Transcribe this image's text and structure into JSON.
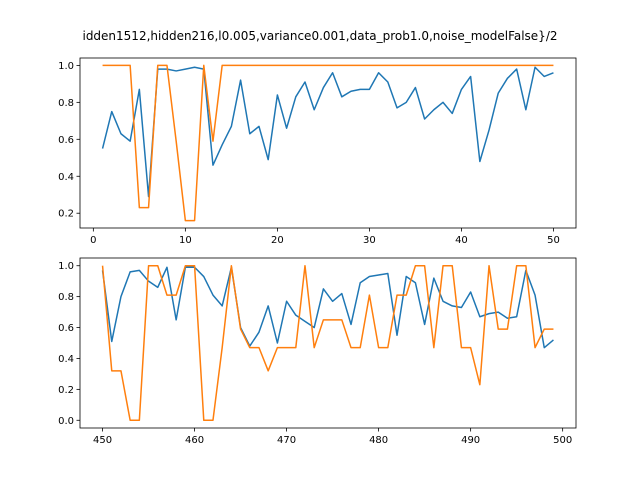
{
  "figure": {
    "title": "idden1512,hidden216,l0.005,variance0.001,data_prob1.0,noise_modelFalse}/2"
  },
  "chart_data": [
    {
      "type": "line",
      "title": "",
      "xlabel": "",
      "ylabel": "",
      "xlim": [
        -1.45,
        52.45
      ],
      "ylim": [
        0.12,
        1.04
      ],
      "xticks": [
        0,
        10,
        20,
        30,
        40,
        50
      ],
      "yticks": [
        0.2,
        0.4,
        0.6,
        0.8,
        1.0
      ],
      "ytick_labels": [
        "0.2",
        "0.4",
        "0.6",
        "0.8",
        "1.0"
      ],
      "grid": false,
      "legend": "none",
      "x": [
        1,
        2,
        3,
        4,
        5,
        6,
        7,
        8,
        9,
        10,
        11,
        12,
        13,
        14,
        15,
        16,
        17,
        18,
        19,
        20,
        21,
        22,
        23,
        24,
        25,
        26,
        27,
        28,
        29,
        30,
        31,
        32,
        33,
        34,
        35,
        36,
        37,
        38,
        39,
        40,
        41,
        42,
        43,
        44,
        45,
        46,
        47,
        48,
        49,
        50
      ],
      "series": [
        {
          "color": "#1f77b4",
          "values": [
            0.55,
            0.75,
            0.63,
            0.59,
            0.87,
            0.29,
            0.98,
            0.98,
            0.97,
            0.98,
            0.99,
            0.98,
            0.46,
            0.57,
            0.67,
            0.92,
            0.63,
            0.67,
            0.49,
            0.84,
            0.66,
            0.83,
            0.91,
            0.76,
            0.88,
            0.96,
            0.83,
            0.86,
            0.87,
            0.87,
            0.96,
            0.91,
            0.77,
            0.8,
            0.88,
            0.71,
            0.76,
            0.8,
            0.74,
            0.87,
            0.94,
            0.48,
            0.65,
            0.85,
            0.93,
            0.98,
            0.76,
            0.99,
            0.94,
            0.96
          ]
        },
        {
          "color": "#ff7f0e",
          "values": [
            1.0,
            1.0,
            1.0,
            1.0,
            0.23,
            0.23,
            1.0,
            1.0,
            0.59,
            0.16,
            0.16,
            1.0,
            0.59,
            1.0,
            1.0,
            1.0,
            1.0,
            1.0,
            1.0,
            1.0,
            1.0,
            1.0,
            1.0,
            1.0,
            1.0,
            1.0,
            1.0,
            1.0,
            1.0,
            1.0,
            1.0,
            1.0,
            1.0,
            1.0,
            1.0,
            1.0,
            1.0,
            1.0,
            1.0,
            1.0,
            1.0,
            1.0,
            1.0,
            1.0,
            1.0,
            1.0,
            1.0,
            1.0,
            1.0,
            1.0
          ]
        }
      ]
    },
    {
      "type": "line",
      "title": "",
      "xlabel": "",
      "ylabel": "",
      "xlim": [
        447.55,
        501.45
      ],
      "ylim": [
        -0.05,
        1.05
      ],
      "xticks": [
        450,
        460,
        470,
        480,
        490,
        500
      ],
      "yticks": [
        0.0,
        0.2,
        0.4,
        0.6,
        0.8,
        1.0
      ],
      "ytick_labels": [
        "0.0",
        "0.2",
        "0.4",
        "0.6",
        "0.8",
        "1.0"
      ],
      "grid": false,
      "legend": "none",
      "x": [
        450,
        451,
        452,
        453,
        454,
        455,
        456,
        457,
        458,
        459,
        460,
        461,
        462,
        463,
        464,
        465,
        466,
        467,
        468,
        469,
        470,
        471,
        472,
        473,
        474,
        475,
        476,
        477,
        478,
        479,
        480,
        481,
        482,
        483,
        484,
        485,
        486,
        487,
        488,
        489,
        490,
        491,
        492,
        493,
        494,
        495,
        496,
        497,
        498,
        499
      ],
      "series": [
        {
          "color": "#1f77b4",
          "values": [
            0.97,
            0.51,
            0.8,
            0.96,
            0.97,
            0.9,
            0.86,
            0.99,
            0.65,
            0.99,
            0.99,
            0.93,
            0.81,
            0.74,
            0.99,
            0.6,
            0.48,
            0.57,
            0.74,
            0.5,
            0.77,
            0.68,
            0.64,
            0.6,
            0.85,
            0.77,
            0.82,
            0.62,
            0.89,
            0.93,
            0.94,
            0.95,
            0.55,
            0.93,
            0.89,
            0.62,
            0.92,
            0.77,
            0.74,
            0.73,
            0.83,
            0.67,
            0.69,
            0.7,
            0.66,
            0.67,
            0.97,
            0.81,
            0.47,
            0.52
          ]
        },
        {
          "color": "#ff7f0e",
          "values": [
            1.0,
            0.32,
            0.32,
            0.0,
            0.0,
            1.0,
            1.0,
            0.81,
            0.81,
            1.0,
            1.0,
            0.0,
            0.0,
            0.47,
            1.0,
            0.59,
            0.47,
            0.47,
            0.32,
            0.47,
            0.47,
            0.47,
            1.0,
            0.47,
            0.65,
            0.65,
            0.65,
            0.47,
            0.47,
            0.81,
            0.47,
            0.47,
            0.81,
            0.81,
            1.0,
            1.0,
            0.47,
            1.0,
            1.0,
            0.47,
            0.47,
            0.23,
            1.0,
            0.59,
            0.59,
            1.0,
            1.0,
            0.47,
            0.59,
            0.59
          ]
        }
      ]
    }
  ]
}
